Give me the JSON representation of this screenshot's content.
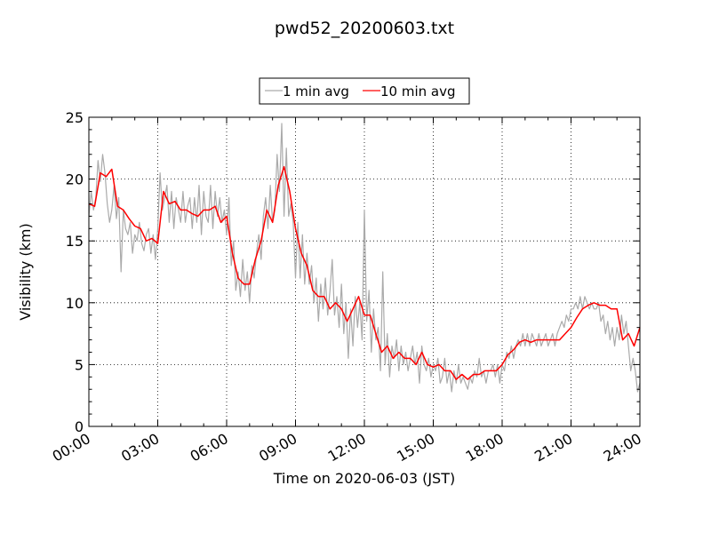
{
  "chart_data": {
    "type": "line",
    "title": "pwd52_20200603.txt",
    "xlabel": "Time on 2020-06-03 (JST)",
    "ylabel": "Visibility (km)",
    "xlim": [
      0,
      24
    ],
    "ylim": [
      0,
      25
    ],
    "xticks": [
      0,
      3,
      6,
      9,
      12,
      15,
      18,
      21,
      24
    ],
    "xtick_labels": [
      "00:00",
      "03:00",
      "06:00",
      "09:00",
      "12:00",
      "15:00",
      "18:00",
      "21:00",
      "24:00"
    ],
    "yticks": [
      0,
      5,
      10,
      15,
      20,
      25
    ],
    "ytick_labels": [
      "0",
      "5",
      "10",
      "15",
      "20",
      "25"
    ],
    "grid": true,
    "legend": "top-center",
    "series": [
      {
        "name": "1 min avg",
        "color": "#aaaaaa",
        "x": [
          0.0,
          0.1,
          0.2,
          0.3,
          0.4,
          0.5,
          0.6,
          0.7,
          0.8,
          0.9,
          1.0,
          1.1,
          1.2,
          1.3,
          1.4,
          1.5,
          1.6,
          1.7,
          1.8,
          1.9,
          2.0,
          2.1,
          2.2,
          2.3,
          2.4,
          2.5,
          2.6,
          2.7,
          2.8,
          2.9,
          3.0,
          3.1,
          3.2,
          3.3,
          3.4,
          3.5,
          3.6,
          3.7,
          3.8,
          3.9,
          4.0,
          4.1,
          4.2,
          4.3,
          4.4,
          4.5,
          4.6,
          4.7,
          4.8,
          4.9,
          5.0,
          5.1,
          5.2,
          5.3,
          5.4,
          5.5,
          5.6,
          5.7,
          5.8,
          5.9,
          6.0,
          6.1,
          6.2,
          6.3,
          6.4,
          6.5,
          6.6,
          6.7,
          6.8,
          6.9,
          7.0,
          7.1,
          7.2,
          7.3,
          7.4,
          7.5,
          7.6,
          7.7,
          7.8,
          7.9,
          8.0,
          8.1,
          8.2,
          8.3,
          8.4,
          8.5,
          8.6,
          8.7,
          8.8,
          8.9,
          9.0,
          9.1,
          9.2,
          9.3,
          9.4,
          9.5,
          9.6,
          9.7,
          9.8,
          9.9,
          10.0,
          10.1,
          10.2,
          10.3,
          10.4,
          10.5,
          10.6,
          10.7,
          10.8,
          10.9,
          11.0,
          11.1,
          11.2,
          11.3,
          11.4,
          11.5,
          11.6,
          11.7,
          11.8,
          11.9,
          12.0,
          12.1,
          12.2,
          12.3,
          12.4,
          12.5,
          12.6,
          12.7,
          12.8,
          12.9,
          13.0,
          13.1,
          13.2,
          13.3,
          13.4,
          13.5,
          13.6,
          13.7,
          13.8,
          13.9,
          14.0,
          14.1,
          14.2,
          14.3,
          14.4,
          14.5,
          14.6,
          14.7,
          14.8,
          14.9,
          15.0,
          15.1,
          15.2,
          15.3,
          15.4,
          15.5,
          15.6,
          15.7,
          15.8,
          15.9,
          16.0,
          16.1,
          16.2,
          16.3,
          16.4,
          16.5,
          16.6,
          16.7,
          16.8,
          16.9,
          17.0,
          17.1,
          17.2,
          17.3,
          17.4,
          17.5,
          17.6,
          17.7,
          17.8,
          17.9,
          18.0,
          18.1,
          18.2,
          18.3,
          18.4,
          18.5,
          18.6,
          18.7,
          18.8,
          18.9,
          19.0,
          19.1,
          19.2,
          19.3,
          19.4,
          19.5,
          19.6,
          19.7,
          19.8,
          19.9,
          20.0,
          20.1,
          20.2,
          20.3,
          20.4,
          20.5,
          20.6,
          20.7,
          20.8,
          20.9,
          21.0,
          21.1,
          21.2,
          21.3,
          21.4,
          21.5,
          21.6,
          21.7,
          21.8,
          21.9,
          22.0,
          22.1,
          22.2,
          22.3,
          22.4,
          22.5,
          22.6,
          22.7,
          22.8,
          22.9,
          23.0,
          23.1,
          23.2,
          23.3,
          23.4,
          23.5,
          23.6,
          23.7,
          23.8,
          23.9,
          24.0
        ],
        "values": [
          17.0,
          19.0,
          17.5,
          18.5,
          21.5,
          19.8,
          22.0,
          20.5,
          18.0,
          16.5,
          17.5,
          19.5,
          16.8,
          18.5,
          12.5,
          17.5,
          16.0,
          15.5,
          16.5,
          14.0,
          15.5,
          15.0,
          16.5,
          14.8,
          14.2,
          15.5,
          16.0,
          14.0,
          15.5,
          13.5,
          16.0,
          20.5,
          17.5,
          18.5,
          19.5,
          16.5,
          19.0,
          16.0,
          18.5,
          17.5,
          16.5,
          19.0,
          16.5,
          17.8,
          18.5,
          16.0,
          18.5,
          16.5,
          19.5,
          15.5,
          19.0,
          17.0,
          16.5,
          19.5,
          16.0,
          19.0,
          17.0,
          18.5,
          16.5,
          17.5,
          15.5,
          18.5,
          13.0,
          15.0,
          11.0,
          12.5,
          10.5,
          13.5,
          11.0,
          12.5,
          10.0,
          13.0,
          12.0,
          14.0,
          15.5,
          13.5,
          17.0,
          18.5,
          16.0,
          19.5,
          16.5,
          17.5,
          22.0,
          19.0,
          24.5,
          17.0,
          22.5,
          17.0,
          18.0,
          16.5,
          12.0,
          16.5,
          12.0,
          15.5,
          11.5,
          14.0,
          11.5,
          13.0,
          10.0,
          12.0,
          8.5,
          11.5,
          9.5,
          12.0,
          9.0,
          11.0,
          13.5,
          9.0,
          10.5,
          8.0,
          11.5,
          7.5,
          10.0,
          5.5,
          9.5,
          6.5,
          10.5,
          8.0,
          10.0,
          7.0,
          17.5,
          8.5,
          11.0,
          6.0,
          9.5,
          7.0,
          8.0,
          4.5,
          12.5,
          5.0,
          7.5,
          4.0,
          6.5,
          5.5,
          7.0,
          4.5,
          6.5,
          5.0,
          6.0,
          4.5,
          5.5,
          6.5,
          5.0,
          6.0,
          3.5,
          6.5,
          5.0,
          4.5,
          5.5,
          4.0,
          5.0,
          4.5,
          5.5,
          3.5,
          4.0,
          5.5,
          3.5,
          4.5,
          2.8,
          4.5,
          3.5,
          5.0,
          3.5,
          4.0,
          3.5,
          3.0,
          4.0,
          3.5,
          4.5,
          4.0,
          5.5,
          4.0,
          4.5,
          3.5,
          4.5,
          4.5,
          5.0,
          4.0,
          5.0,
          3.5,
          5.0,
          4.5,
          6.0,
          5.5,
          6.5,
          5.5,
          6.5,
          7.0,
          6.5,
          7.5,
          6.5,
          7.5,
          6.5,
          7.5,
          7.0,
          6.5,
          7.5,
          6.5,
          7.0,
          7.5,
          6.5,
          7.0,
          7.5,
          6.5,
          7.5,
          8.0,
          8.5,
          8.0,
          9.0,
          8.5,
          9.5,
          9.5,
          10.0,
          9.5,
          10.5,
          9.5,
          10.5,
          10.0,
          9.5,
          10.0,
          9.5,
          9.5,
          10.0,
          8.5,
          9.0,
          7.5,
          8.5,
          7.0,
          8.0,
          6.5,
          8.0,
          7.0,
          9.0,
          7.5,
          8.5,
          6.5,
          4.5,
          5.5,
          4.5,
          2.8,
          3.5
        ]
      },
      {
        "name": "10 min avg",
        "color": "#ff0000",
        "x": [
          0.0,
          0.25,
          0.5,
          0.75,
          1.0,
          1.25,
          1.5,
          1.75,
          2.0,
          2.25,
          2.5,
          2.75,
          3.0,
          3.25,
          3.5,
          3.75,
          4.0,
          4.25,
          4.5,
          4.75,
          5.0,
          5.25,
          5.5,
          5.75,
          6.0,
          6.25,
          6.5,
          6.75,
          7.0,
          7.25,
          7.5,
          7.75,
          8.0,
          8.25,
          8.5,
          8.75,
          9.0,
          9.25,
          9.5,
          9.75,
          10.0,
          10.25,
          10.5,
          10.75,
          11.0,
          11.25,
          11.5,
          11.75,
          12.0,
          12.25,
          12.5,
          12.75,
          13.0,
          13.25,
          13.5,
          13.75,
          14.0,
          14.25,
          14.5,
          14.75,
          15.0,
          15.25,
          15.5,
          15.75,
          16.0,
          16.25,
          16.5,
          16.75,
          17.0,
          17.25,
          17.5,
          17.75,
          18.0,
          18.25,
          18.5,
          18.75,
          19.0,
          19.25,
          19.5,
          19.75,
          20.0,
          20.25,
          20.5,
          20.75,
          21.0,
          21.25,
          21.5,
          21.75,
          22.0,
          22.25,
          22.5,
          22.75,
          23.0,
          23.25,
          23.5,
          23.75,
          24.0
        ],
        "values": [
          18.0,
          17.8,
          20.5,
          20.2,
          20.8,
          17.8,
          17.5,
          16.8,
          16.2,
          16.0,
          15.0,
          15.2,
          14.8,
          19.0,
          18.0,
          18.2,
          17.5,
          17.5,
          17.2,
          17.0,
          17.5,
          17.5,
          17.8,
          16.5,
          17.0,
          14.0,
          12.0,
          11.5,
          11.5,
          13.5,
          15.0,
          17.5,
          16.5,
          19.5,
          21.0,
          19.0,
          16.0,
          14.0,
          13.0,
          11.0,
          10.5,
          10.5,
          9.5,
          10.0,
          9.5,
          8.5,
          9.5,
          10.5,
          9.0,
          9.0,
          7.5,
          6.0,
          6.5,
          5.5,
          6.0,
          5.5,
          5.5,
          5.0,
          6.0,
          5.0,
          4.8,
          5.0,
          4.5,
          4.5,
          3.8,
          4.2,
          3.8,
          4.2,
          4.2,
          4.5,
          4.5,
          4.5,
          5.0,
          5.8,
          6.2,
          6.8,
          7.0,
          6.8,
          7.0,
          7.0,
          7.0,
          7.0,
          7.0,
          7.5,
          8.0,
          8.8,
          9.5,
          9.8,
          10.0,
          9.8,
          9.8,
          9.5,
          9.5,
          7.0,
          7.5,
          6.5,
          8.0
        ]
      }
    ]
  }
}
